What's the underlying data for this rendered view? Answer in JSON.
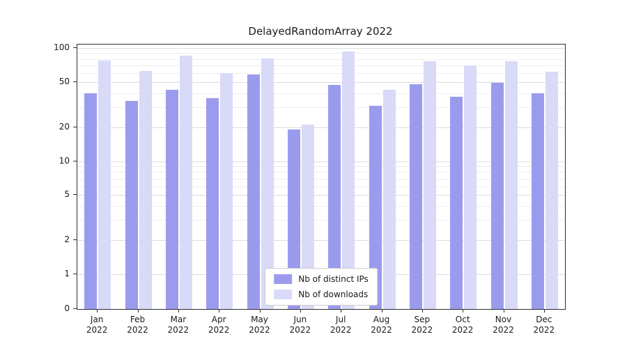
{
  "chart_data": {
    "type": "bar",
    "title": "DelayedRandomArray 2022",
    "yscale": "symlog",
    "ylim": [
      0,
      100
    ],
    "grid": true,
    "legend_position": "bottom-center",
    "background_color": "#ffffff",
    "categories": [
      "Jan 2022",
      "Feb 2022",
      "Mar 2022",
      "Apr 2022",
      "May 2022",
      "Jun 2022",
      "Jul 2022",
      "Aug 2022",
      "Sep 2022",
      "Oct 2022",
      "Nov 2022",
      "Dec 2022"
    ],
    "yticks": [
      0,
      1,
      2,
      5,
      10,
      20,
      50,
      100
    ],
    "minor_yticks": [
      3,
      4,
      6,
      7,
      8,
      9,
      30,
      40,
      60,
      70,
      80,
      90
    ],
    "series": [
      {
        "name": "Nb of distinct IPs",
        "color": "#9b9bee",
        "values": [
          40,
          34,
          43,
          36,
          58,
          19,
          47,
          31,
          48,
          37,
          49,
          40
        ]
      },
      {
        "name": "Nb of downloads",
        "color": "#d9d9f8",
        "values": [
          78,
          63,
          86,
          60,
          81,
          21,
          93,
          43,
          76,
          70,
          76,
          62
        ]
      }
    ]
  }
}
